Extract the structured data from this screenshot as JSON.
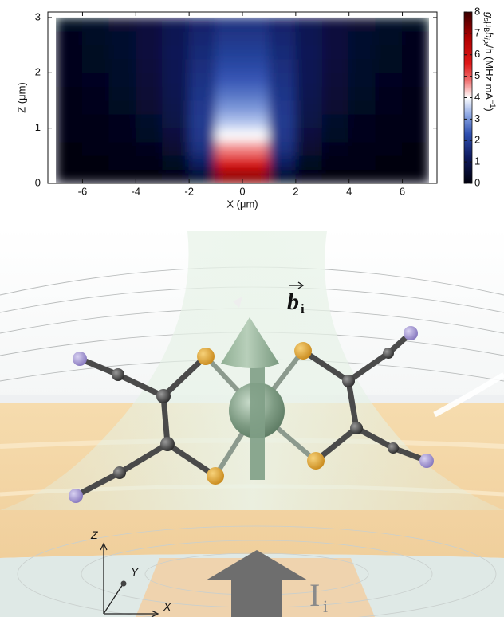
{
  "chart_data": {
    "type": "heatmap",
    "x_label": "X (μm)",
    "y_label": "Z (μm)",
    "colorbar_label": {
      "parts": [
        "g",
        "s",
        "μ",
        "B",
        "b",
        "i,x",
        "/h (MHz mA",
        "−1",
        ")"
      ]
    },
    "xlim": [
      -7.3,
      7.3
    ],
    "ylim": [
      0,
      3.1
    ],
    "xticks": [
      -6,
      -4,
      -2,
      0,
      2,
      4,
      6
    ],
    "yticks": [
      0,
      1,
      2,
      3
    ],
    "clim": [
      0,
      8
    ],
    "cticks": [
      0,
      1,
      2,
      3,
      4,
      5,
      6,
      7,
      8
    ],
    "colorscale": [
      [
        0,
        "#00000c"
      ],
      [
        1.2,
        "#0f1a5e"
      ],
      [
        2.3,
        "#2e4fb0"
      ],
      [
        3.2,
        "#8ea8e4"
      ],
      [
        4,
        "#ffffff"
      ],
      [
        4.8,
        "#f07070"
      ],
      [
        5.6,
        "#e01818"
      ],
      [
        6.8,
        "#b00000"
      ],
      [
        8,
        "#3a0000"
      ]
    ],
    "x": [
      -6.5,
      -5.5,
      -4.5,
      -3.5,
      -2.5,
      -1.5,
      -0.5,
      0.5,
      1.5,
      2.5,
      3.5,
      4.5,
      5.5,
      6.5
    ],
    "y": [
      0.125,
      0.375,
      0.625,
      0.875,
      1.125,
      1.375,
      1.625,
      1.875,
      2.125,
      2.375,
      2.625,
      2.875
    ],
    "values": [
      [
        0.02,
        0.02,
        0.03,
        0.06,
        0.12,
        0.5,
        7.16,
        7.16,
        0.5,
        0.12,
        0.06,
        0.03,
        0.02,
        0.02
      ],
      [
        0.05,
        0.06,
        0.1,
        0.17,
        0.35,
        1.26,
        5.73,
        5.73,
        1.26,
        0.35,
        0.17,
        0.1,
        0.06,
        0.05
      ],
      [
        0.08,
        0.11,
        0.16,
        0.27,
        0.56,
        1.66,
        4.71,
        4.71,
        1.66,
        0.56,
        0.27,
        0.16,
        0.11,
        0.08
      ],
      [
        0.11,
        0.15,
        0.22,
        0.37,
        0.72,
        1.82,
        3.98,
        3.98,
        1.82,
        0.72,
        0.37,
        0.22,
        0.15,
        0.11
      ],
      [
        0.13,
        0.19,
        0.28,
        0.45,
        0.85,
        1.86,
        3.43,
        3.43,
        1.86,
        0.85,
        0.45,
        0.28,
        0.19,
        0.13
      ],
      [
        0.16,
        0.22,
        0.33,
        0.53,
        0.94,
        1.83,
        3.0,
        3.0,
        1.83,
        0.94,
        0.53,
        0.33,
        0.22,
        0.16
      ],
      [
        0.19,
        0.26,
        0.38,
        0.59,
        1.0,
        1.77,
        2.66,
        2.66,
        1.77,
        1.0,
        0.59,
        0.38,
        0.26,
        0.19
      ],
      [
        0.21,
        0.29,
        0.42,
        0.63,
        1.03,
        1.7,
        2.38,
        2.38,
        1.7,
        1.03,
        0.63,
        0.42,
        0.29,
        0.21
      ],
      [
        0.24,
        0.32,
        0.45,
        0.67,
        1.04,
        1.62,
        2.15,
        2.15,
        1.62,
        1.04,
        0.67,
        0.45,
        0.32,
        0.24
      ],
      [
        0.26,
        0.35,
        0.48,
        0.7,
        1.05,
        1.54,
        1.96,
        1.96,
        1.54,
        1.05,
        0.7,
        0.48,
        0.35,
        0.26
      ],
      [
        0.28,
        0.37,
        0.5,
        0.72,
        1.04,
        1.46,
        1.8,
        1.8,
        1.46,
        1.04,
        0.72,
        0.5,
        0.37,
        0.28
      ],
      [
        0.3,
        0.39,
        0.52,
        0.73,
        1.02,
        1.38,
        1.66,
        1.66,
        1.38,
        1.02,
        0.73,
        0.52,
        0.39,
        0.3
      ]
    ]
  },
  "illustration": {
    "field_label": {
      "base": "b",
      "sub": "i"
    },
    "current_label": {
      "base": "I",
      "sub": "i"
    },
    "axes": [
      "Z",
      "Y",
      "X"
    ]
  }
}
